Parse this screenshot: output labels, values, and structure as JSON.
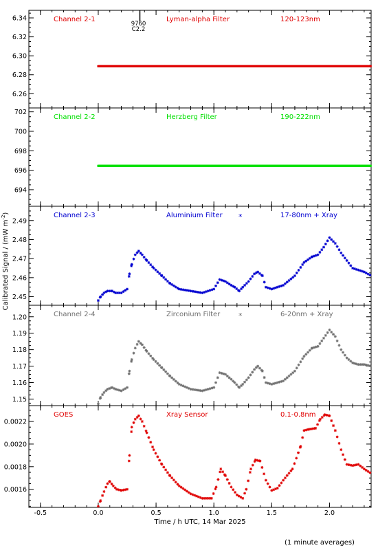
{
  "ylabel": "Calibrated Signal / (mW m",
  "ylabel_sup": "-2",
  "ylabel_end": ")",
  "xlabel": "Time / h UTC, 14 Mar 2025",
  "footnote": "(1 minute averages)",
  "event_marker": {
    "line1": "9760",
    "line2": "C2.2",
    "x": 0.36
  },
  "x_axis": {
    "range": [
      -0.6,
      2.36
    ],
    "ticks": [
      -0.5,
      0.0,
      0.5,
      1.0,
      1.5,
      2.0
    ],
    "tick_labels": [
      "-0.5",
      "0.0",
      "0.5",
      "1.0",
      "1.5",
      "2.0"
    ]
  },
  "colors": {
    "red": "#e00000",
    "green": "#00e000",
    "blue": "#0000d0",
    "gray": "#707070",
    "axis": "#000000"
  },
  "chart_data": [
    {
      "type": "scatter",
      "channel": "Channel 2-1",
      "filter": "Lyman-alpha Filter",
      "band": "120-123nm",
      "color": "#e00000",
      "ylim": [
        6.245,
        6.348
      ],
      "yticks": [
        6.26,
        6.28,
        6.3,
        6.32,
        6.34
      ],
      "ytick_labels": [
        "6.26",
        "6.28",
        "6.30",
        "6.32",
        "6.34"
      ],
      "x": [
        0.0,
        2.36
      ],
      "y": [
        6.289,
        6.289
      ]
    },
    {
      "type": "scatter",
      "channel": "Channel 2-2",
      "filter": "Herzberg Filter",
      "band": "190-222nm",
      "color": "#00e000",
      "ylim": [
        692.3,
        702.4
      ],
      "yticks": [
        694,
        696,
        698,
        700,
        702
      ],
      "ytick_labels": [
        "694",
        "696",
        "698",
        "700",
        "702"
      ],
      "x": [
        0.0,
        2.36
      ],
      "y": [
        696.45,
        696.45
      ]
    },
    {
      "type": "scatter",
      "channel": "Channel 2-3",
      "filter": "Aluminium Filter",
      "band": "17-80nm + Xray",
      "legend_marker": "*",
      "color": "#0000d0",
      "ylim": [
        2.4455,
        2.4975
      ],
      "yticks": [
        2.45,
        2.46,
        2.47,
        2.48,
        2.49
      ],
      "ytick_labels": [
        "2.45",
        "2.46",
        "2.47",
        "2.48",
        "2.49"
      ],
      "x": [
        0.0,
        0.02,
        0.05,
        0.08,
        0.12,
        0.15,
        0.2,
        0.25,
        0.27,
        0.29,
        0.32,
        0.35,
        0.38,
        0.42,
        0.48,
        0.55,
        0.62,
        0.7,
        0.8,
        0.9,
        1.0,
        1.05,
        1.1,
        1.15,
        1.18,
        1.22,
        1.25,
        1.3,
        1.35,
        1.38,
        1.42,
        1.45,
        1.5,
        1.6,
        1.7,
        1.78,
        1.85,
        1.9,
        1.95,
        2.0,
        2.05,
        2.1,
        2.15,
        2.2,
        2.25,
        2.3,
        2.36
      ],
      "y": [
        2.448,
        2.45,
        2.452,
        2.453,
        2.453,
        2.452,
        2.452,
        2.454,
        2.462,
        2.467,
        2.472,
        2.474,
        2.472,
        2.469,
        2.465,
        2.461,
        2.457,
        2.454,
        2.453,
        2.452,
        2.454,
        2.459,
        2.458,
        2.456,
        2.455,
        2.453,
        2.455,
        2.458,
        2.462,
        2.463,
        2.461,
        2.455,
        2.454,
        2.456,
        2.461,
        2.468,
        2.471,
        2.472,
        2.476,
        2.481,
        2.478,
        2.473,
        2.469,
        2.465,
        2.464,
        2.463,
        2.461
      ]
    },
    {
      "type": "scatter",
      "channel": "Channel 2-4",
      "filter": "Zirconium Filter",
      "band": "6-20nm + Xray",
      "legend_marker": "*",
      "color": "#707070",
      "ylim": [
        1.146,
        1.207
      ],
      "yticks": [
        1.15,
        1.16,
        1.17,
        1.18,
        1.19,
        1.2
      ],
      "ytick_labels": [
        "1.15",
        "1.16",
        "1.17",
        "1.18",
        "1.19",
        "1.20"
      ],
      "x": [
        0.0,
        0.02,
        0.05,
        0.08,
        0.12,
        0.15,
        0.2,
        0.25,
        0.27,
        0.29,
        0.32,
        0.35,
        0.38,
        0.42,
        0.48,
        0.55,
        0.62,
        0.7,
        0.8,
        0.9,
        1.0,
        1.05,
        1.1,
        1.15,
        1.18,
        1.22,
        1.25,
        1.3,
        1.35,
        1.38,
        1.42,
        1.45,
        1.5,
        1.6,
        1.7,
        1.78,
        1.85,
        1.9,
        1.95,
        2.0,
        2.05,
        2.1,
        2.15,
        2.2,
        2.25,
        2.3,
        2.36
      ],
      "y": [
        1.147,
        1.151,
        1.154,
        1.156,
        1.157,
        1.156,
        1.155,
        1.157,
        1.167,
        1.174,
        1.181,
        1.185,
        1.183,
        1.179,
        1.174,
        1.169,
        1.164,
        1.159,
        1.156,
        1.155,
        1.157,
        1.166,
        1.165,
        1.162,
        1.16,
        1.157,
        1.159,
        1.163,
        1.168,
        1.17,
        1.167,
        1.16,
        1.159,
        1.161,
        1.167,
        1.176,
        1.181,
        1.182,
        1.187,
        1.192,
        1.188,
        1.18,
        1.175,
        1.172,
        1.171,
        1.171,
        1.17
      ]
    },
    {
      "type": "scatter",
      "channel": "GOES",
      "filter": "Xray Sensor",
      "band": "0.1-0.8nm",
      "color": "#e00000",
      "ylim": [
        0.00144,
        0.00234
      ],
      "yticks": [
        0.0016,
        0.0018,
        0.002,
        0.0022
      ],
      "ytick_labels": [
        "0.0016",
        "0.0018",
        "0.0020",
        "0.0022"
      ],
      "x": [
        0.0,
        0.02,
        0.05,
        0.08,
        0.1,
        0.13,
        0.16,
        0.2,
        0.25,
        0.27,
        0.29,
        0.32,
        0.35,
        0.38,
        0.42,
        0.48,
        0.55,
        0.62,
        0.7,
        0.8,
        0.9,
        0.98,
        1.02,
        1.06,
        1.1,
        1.15,
        1.2,
        1.25,
        1.28,
        1.32,
        1.36,
        1.4,
        1.45,
        1.5,
        1.55,
        1.6,
        1.68,
        1.75,
        1.78,
        1.82,
        1.88,
        1.92,
        1.96,
        2.0,
        2.05,
        2.1,
        2.15,
        2.2,
        2.25,
        2.3,
        2.36
      ],
      "y": [
        0.00145,
        0.0015,
        0.00158,
        0.00165,
        0.00167,
        0.00163,
        0.0016,
        0.00159,
        0.0016,
        0.0019,
        0.00215,
        0.00222,
        0.00225,
        0.0022,
        0.0021,
        0.00195,
        0.00182,
        0.00172,
        0.00163,
        0.00156,
        0.00152,
        0.00152,
        0.00162,
        0.00178,
        0.00172,
        0.00162,
        0.00155,
        0.00152,
        0.0016,
        0.00178,
        0.00186,
        0.00185,
        0.00168,
        0.00159,
        0.00161,
        0.00168,
        0.00178,
        0.00198,
        0.00212,
        0.00213,
        0.00214,
        0.00222,
        0.00226,
        0.00225,
        0.00212,
        0.00195,
        0.00182,
        0.00181,
        0.00182,
        0.00178,
        0.00174
      ]
    }
  ]
}
